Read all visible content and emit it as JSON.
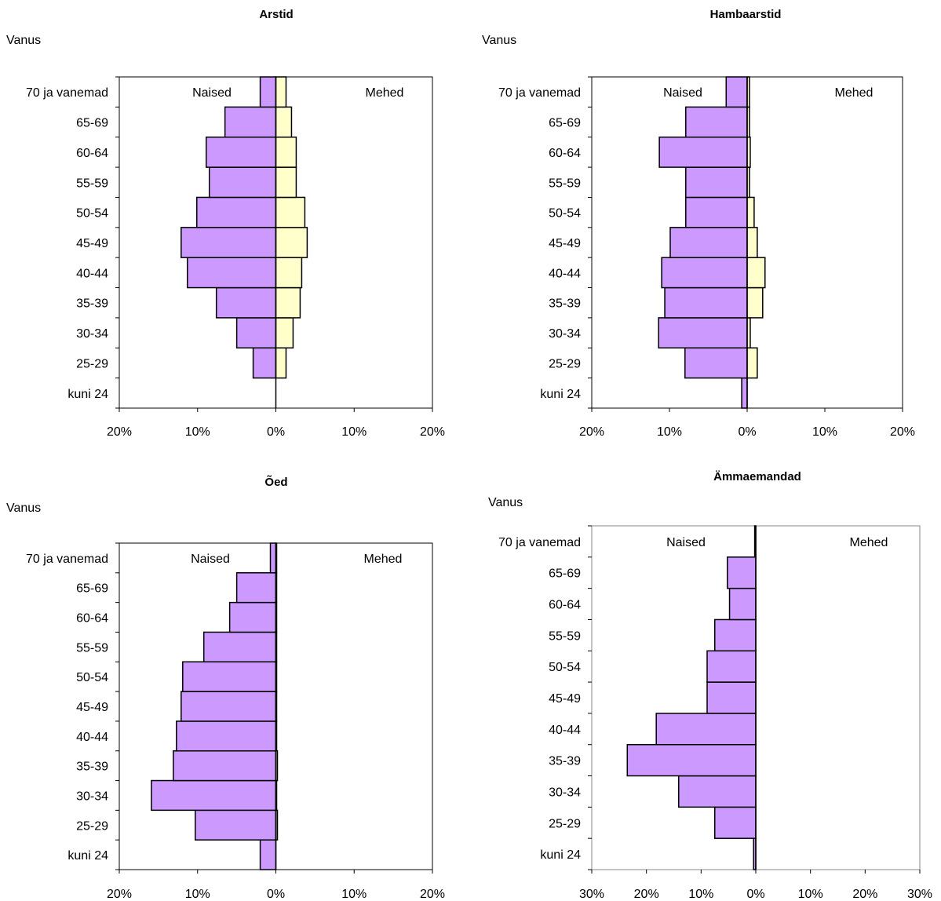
{
  "chart_data": [
    {
      "type": "bar",
      "title": "Arstid",
      "ylabel": "Vanus",
      "categories": [
        "kuni 24",
        "25-29",
        "30-34",
        "35-39",
        "40-44",
        "45-49",
        "50-54",
        "55-59",
        "60-64",
        "65-69",
        "70 ja vanemad"
      ],
      "annotations": [
        "Naised",
        "Mehed"
      ],
      "xlim": [
        -20,
        20
      ],
      "xticks": [
        "20%",
        "10%",
        "0%",
        "10%",
        "20%"
      ],
      "series": [
        {
          "name": "Naised",
          "values": [
            0,
            2.9,
            5.0,
            7.6,
            11.3,
            12.1,
            10.1,
            8.5,
            8.9,
            6.5,
            2.0
          ]
        },
        {
          "name": "Mehed",
          "values": [
            0,
            1.3,
            2.2,
            3.1,
            3.3,
            4.0,
            3.7,
            2.6,
            2.6,
            2.0,
            1.3
          ]
        }
      ],
      "colors": {
        "naised": "#cc99ff",
        "mehed": "#ffffcc"
      }
    },
    {
      "type": "bar",
      "title": "Hambaarstid",
      "ylabel": "Vanus",
      "categories": [
        "kuni 24",
        "25-29",
        "30-34",
        "35-39",
        "40-44",
        "45-49",
        "50-54",
        "55-59",
        "60-64",
        "65-69",
        "70 ja vanemad"
      ],
      "annotations": [
        "Naised",
        "Mehed"
      ],
      "xlim": [
        -20,
        20
      ],
      "xticks": [
        "20%",
        "10%",
        "0%",
        "10%",
        "20%"
      ],
      "series": [
        {
          "name": "Naised",
          "values": [
            0.7,
            8.0,
            11.4,
            10.6,
            11.0,
            9.9,
            7.9,
            7.9,
            11.3,
            7.9,
            2.7
          ]
        },
        {
          "name": "Mehed",
          "values": [
            0,
            1.3,
            0.4,
            2.0,
            2.3,
            1.3,
            0.9,
            0.3,
            0.4,
            0.3,
            0.3
          ]
        }
      ],
      "colors": {
        "naised": "#cc99ff",
        "mehed": "#ffffcc"
      }
    },
    {
      "type": "bar",
      "title": "Õed",
      "ylabel": "Vanus",
      "categories": [
        "kuni 24",
        "25-29",
        "30-34",
        "35-39",
        "40-44",
        "45-49",
        "50-54",
        "55-59",
        "60-64",
        "65-69",
        "70 ja vanemad"
      ],
      "annotations": [
        "Naised",
        "Mehed"
      ],
      "xlim": [
        -20,
        20
      ],
      "xticks": [
        "20%",
        "10%",
        "0%",
        "10%",
        "20%"
      ],
      "series": [
        {
          "name": "Naised",
          "values": [
            2.0,
            10.3,
            15.9,
            13.1,
            12.7,
            12.1,
            11.9,
            9.2,
            5.9,
            5.0,
            0.7
          ]
        },
        {
          "name": "Mehed",
          "values": [
            0,
            0.2,
            0.1,
            0.2,
            0.1,
            0.1,
            0.1,
            0.1,
            0.1,
            0.1,
            0.1
          ]
        }
      ],
      "colors": {
        "naised": "#cc99ff",
        "mehed": "#ffffcc"
      }
    },
    {
      "type": "bar",
      "title": "Ämmaemandad",
      "ylabel": "Vanus",
      "categories": [
        "kuni 24",
        "25-29",
        "30-34",
        "35-39",
        "40-44",
        "45-49",
        "50-54",
        "55-59",
        "60-64",
        "65-69",
        "70 ja vanemad"
      ],
      "annotations": [
        "Naised",
        "Mehed"
      ],
      "xlim": [
        -30,
        30
      ],
      "xticks": [
        "30%",
        "20%",
        "10%",
        "0%",
        "10%",
        "20%",
        "30%"
      ],
      "series": [
        {
          "name": "Naised",
          "values": [
            0.4,
            7.5,
            14.1,
            23.5,
            18.2,
            8.9,
            8.9,
            7.5,
            4.8,
            5.2,
            0.2
          ]
        },
        {
          "name": "Mehed",
          "values": [
            0,
            0,
            0,
            0,
            0,
            0,
            0,
            0,
            0,
            0,
            0
          ]
        }
      ],
      "colors": {
        "naised": "#cc99ff",
        "mehed": "#ffffcc"
      }
    }
  ]
}
